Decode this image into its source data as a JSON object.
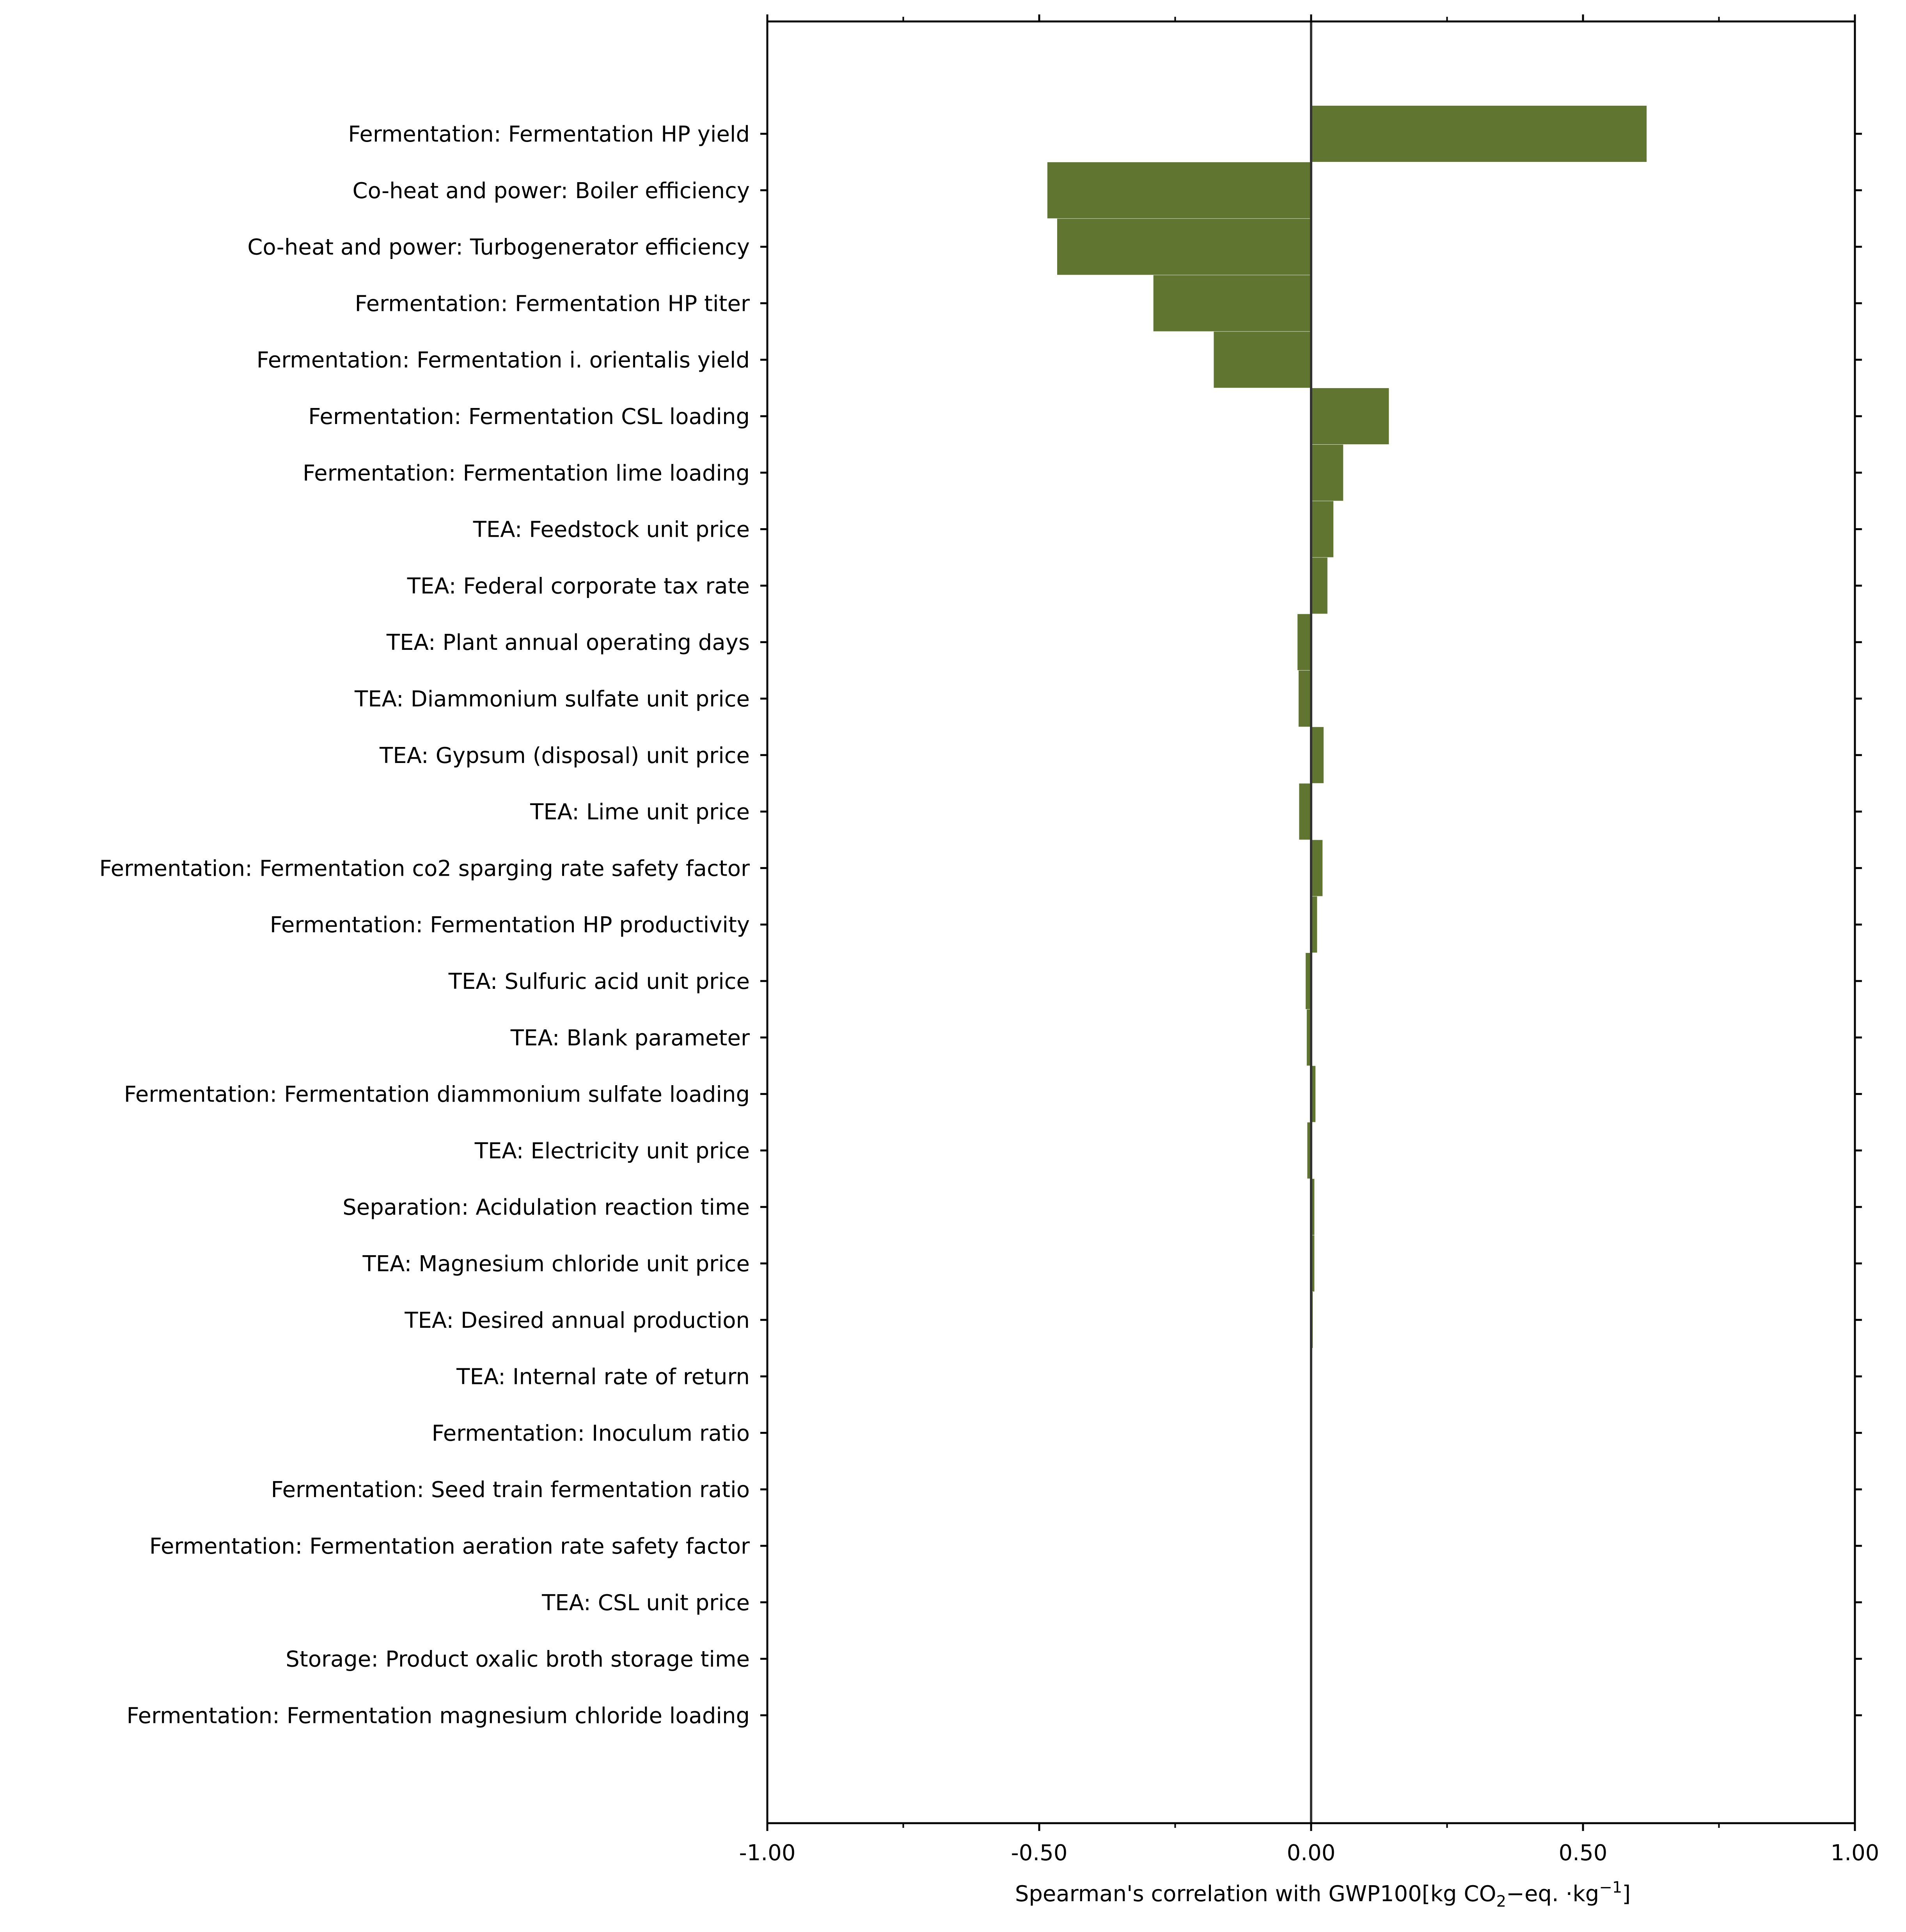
{
  "chart_data": {
    "type": "bar",
    "orientation": "horizontal",
    "categories": [
      "Fermentation: Fermentation HP yield",
      "Co-heat and power: Boiler efficiency",
      "Co-heat and power: Turbogenerator efficiency",
      "Fermentation: Fermentation HP titer",
      "Fermentation: Fermentation i. orientalis yield",
      "Fermentation: Fermentation CSL loading",
      "Fermentation: Fermentation lime loading",
      "TEA: Feedstock unit price",
      "TEA: Federal corporate tax rate",
      "TEA: Plant annual operating days",
      "TEA: Diammonium sulfate unit price",
      "TEA: Gypsum (disposal) unit price",
      "TEA: Lime unit price",
      "Fermentation: Fermentation co2 sparging rate safety factor",
      "Fermentation: Fermentation HP productivity",
      "TEA: Sulfuric acid unit price",
      "TEA: Blank parameter",
      "Fermentation: Fermentation diammonium sulfate loading",
      "TEA: Electricity unit price",
      "Separation: Acidulation reaction time",
      "TEA: Magnesium chloride unit price",
      "TEA: Desired annual production",
      "TEA: Internal rate of return",
      "Fermentation: Inoculum ratio",
      "Fermentation: Seed train fermentation ratio",
      "Fermentation: Fermentation aeration rate safety factor",
      "TEA: CSL unit price",
      "Storage: Product oxalic broth storage time",
      "Fermentation: Fermentation magnesium chloride loading"
    ],
    "values": [
      0.617,
      -0.485,
      -0.467,
      -0.29,
      -0.179,
      0.143,
      0.059,
      0.041,
      0.03,
      -0.025,
      -0.023,
      0.023,
      -0.022,
      0.021,
      0.011,
      -0.01,
      -0.008,
      0.008,
      -0.007,
      0.006,
      0.006,
      0.003,
      0.002,
      0.001,
      -0.001,
      0.0,
      0.0,
      0.0,
      0.0
    ],
    "xlim": [
      -1.0,
      1.0
    ],
    "xticks": [
      -1.0,
      -0.5,
      0.0,
      0.5,
      1.0
    ],
    "xtick_labels": [
      "-1.00",
      "-0.50",
      "0.00",
      "0.50",
      "1.00"
    ],
    "xlabel": "Spearman's correlation with GWP100[kg CO",
    "xlabel_sub": "2",
    "xlabel_mid": "−eq. ·kg",
    "xlabel_sup": "−1",
    "xlabel_end": "]",
    "bar_color": "#5f7530",
    "grid": false,
    "legend": "none"
  }
}
